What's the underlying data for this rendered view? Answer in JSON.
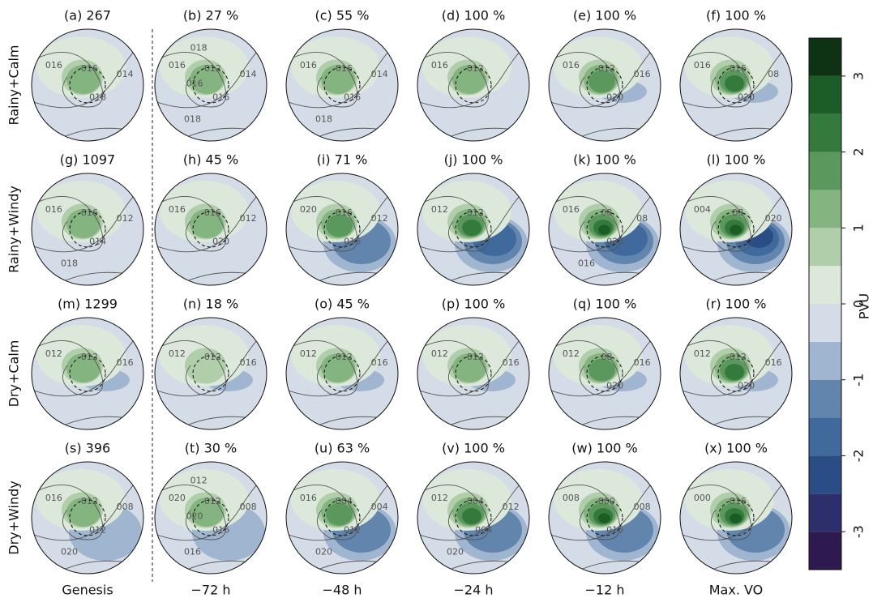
{
  "chart_data": {
    "type": "contour-map-grid",
    "row_labels": [
      "Rainy+Calm",
      "Rainy+Windy",
      "Dry+Calm",
      "Dry+Windy"
    ],
    "column_labels": [
      "Genesis",
      "−72 h",
      "−48 h",
      "−24 h",
      "−12 h",
      "Max. VO"
    ],
    "panels": [
      {
        "title": "(a) 267",
        "contour_labels": [
          "016",
          "016",
          "014",
          "018"
        ]
      },
      {
        "title": "(b) 27 %",
        "contour_labels": [
          "016",
          "012",
          "014",
          "016",
          "018",
          "016",
          "018"
        ]
      },
      {
        "title": "(c) 55 %",
        "contour_labels": [
          "016",
          "016",
          "014",
          "016",
          "018"
        ]
      },
      {
        "title": "(d) 100 %",
        "contour_labels": [
          "016",
          "012"
        ]
      },
      {
        "title": "(e) 100 %",
        "contour_labels": [
          "016",
          "012",
          "016",
          "020"
        ]
      },
      {
        "title": "(f) 100 %",
        "contour_labels": [
          "016",
          "016",
          "08",
          "020"
        ]
      },
      {
        "title": "(g) 1097",
        "contour_labels": [
          "016",
          "016",
          "012",
          "014",
          "018"
        ]
      },
      {
        "title": "(h) 45 %",
        "contour_labels": [
          "016",
          "016",
          "012",
          "020"
        ]
      },
      {
        "title": "(i) 71 %",
        "contour_labels": [
          "020",
          "016",
          "012",
          "016"
        ]
      },
      {
        "title": "(j) 100 %",
        "contour_labels": [
          "012",
          "012"
        ]
      },
      {
        "title": "(k) 100 %",
        "contour_labels": [
          "016",
          "08",
          "08",
          "020",
          "016"
        ]
      },
      {
        "title": "(l) 100 %",
        "contour_labels": [
          "004",
          "08",
          "020"
        ]
      },
      {
        "title": "(m) 1299",
        "contour_labels": [
          "012",
          "012",
          "016"
        ]
      },
      {
        "title": "(n) 18 %",
        "contour_labels": [
          "012",
          "012",
          "016"
        ]
      },
      {
        "title": "(o) 45 %",
        "contour_labels": [
          "012",
          "012",
          "016"
        ]
      },
      {
        "title": "(p) 100 %",
        "contour_labels": [
          "012",
          "012",
          "016"
        ]
      },
      {
        "title": "(q) 100 %",
        "contour_labels": [
          "012",
          "08",
          "016",
          "020"
        ]
      },
      {
        "title": "(r) 100 %",
        "contour_labels": [
          "012",
          "012",
          "016",
          "020"
        ]
      },
      {
        "title": "(s) 396",
        "contour_labels": [
          "016",
          "012",
          "008",
          "012",
          "020"
        ]
      },
      {
        "title": "(t) 30 %",
        "contour_labels": [
          "020",
          "012",
          "008",
          "016",
          "016",
          "020",
          "012"
        ]
      },
      {
        "title": "(u) 63 %",
        "contour_labels": [
          "016",
          "004",
          "004",
          "012",
          "020"
        ]
      },
      {
        "title": "(v) 100 %",
        "contour_labels": [
          "012",
          "004",
          "012",
          "004",
          "020"
        ]
      },
      {
        "title": "(w) 100 %",
        "contour_labels": [
          "008",
          "000",
          "008",
          "016"
        ]
      },
      {
        "title": "(x) 100 %",
        "contour_labels": [
          "000",
          "016"
        ]
      }
    ],
    "colorbar": {
      "label": "PVU",
      "ylim": [
        -3.5,
        3.5
      ],
      "yticks": [
        -3,
        -2,
        -1,
        0,
        1,
        2,
        3
      ],
      "levels": [
        -3.5,
        -3,
        -2.5,
        -2,
        -1.5,
        -1,
        -0.5,
        0,
        0.5,
        1,
        1.5,
        2,
        2.5,
        3,
        3.5
      ],
      "colors": [
        "#2e1a4f",
        "#2d2f6c",
        "#2a4d85",
        "#3f6a9b",
        "#6285ad",
        "#a0b5cf",
        "#d4dde7",
        "#dbe8da",
        "#b0ceaa",
        "#84b47f",
        "#5a985d",
        "#357a3d",
        "#1c5c26",
        "#0e3214"
      ]
    }
  }
}
